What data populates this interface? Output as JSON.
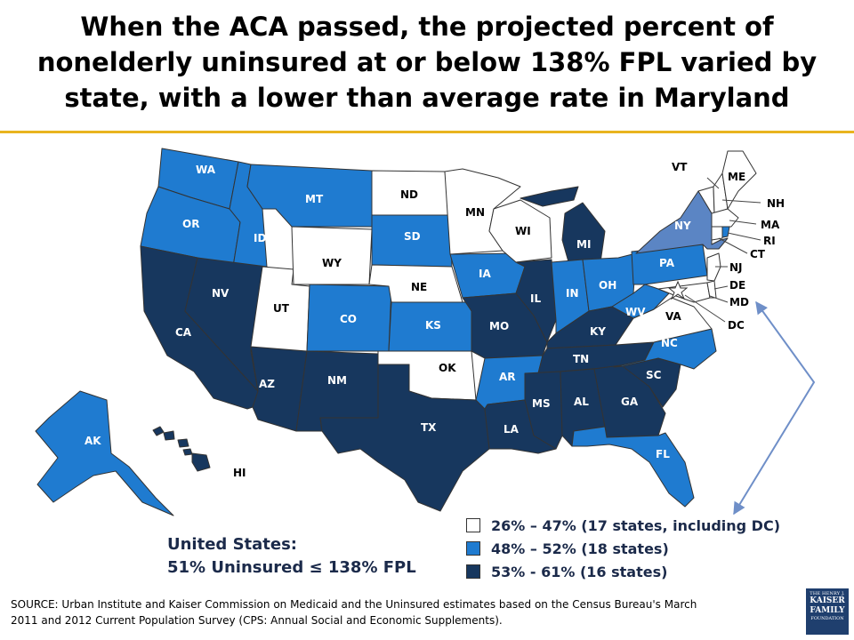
{
  "title": "When the ACA passed, the projected percent of nonelderly uninsured at or below 138% FPL varied by state, with a lower than average rate in Maryland",
  "us_summary": {
    "line1": "United States:",
    "line2": "51% Uninsured ≤ 138% FPL"
  },
  "legend": [
    {
      "label": "26% – 47% (17 states, including DC)",
      "color": "#ffffff"
    },
    {
      "label": "48% – 52% (18 states)",
      "color": "#1f7bd0"
    },
    {
      "label": "53% - 61% (16 states)",
      "color": "#17375e"
    }
  ],
  "colors": {
    "low": "#ffffff",
    "mid": "#1f7bd0",
    "high": "#17375e",
    "ny": "#5b85c4",
    "stroke": "#333333",
    "arrow": "#6f8fc8",
    "rule": "#e8b41e"
  },
  "states": {
    "WA": "WA",
    "OR": "OR",
    "CA": "CA",
    "ID": "ID",
    "NV": "NV",
    "AZ": "AZ",
    "UT": "UT",
    "MT": "MT",
    "WY": "WY",
    "CO": "CO",
    "NM": "NM",
    "ND": "ND",
    "SD": "SD",
    "NE": "NE",
    "KS": "KS",
    "OK": "OK",
    "TX": "TX",
    "MN": "MN",
    "IA": "IA",
    "MO": "MO",
    "AR": "AR",
    "LA": "LA",
    "WI": "WI",
    "IL": "IL",
    "MI": "MI",
    "IN": "IN",
    "OH": "OH",
    "KY": "KY",
    "TN": "TN",
    "MS": "MS",
    "AL": "AL",
    "GA": "GA",
    "FL": "FL",
    "SC": "SC",
    "NC": "NC",
    "VA": "VA",
    "WV": "WV",
    "PA": "PA",
    "NY": "NY",
    "VT": "VT",
    "ME": "ME",
    "NH": "NH",
    "MA": "MA",
    "RI": "RI",
    "CT": "CT",
    "NJ": "NJ",
    "DE": "DE",
    "MD": "MD",
    "DC": "DC",
    "AK": "AK",
    "HI": "HI"
  },
  "source": "SOURCE: Urban Institute and Kaiser Commission on Medicaid and the Uninsured estimates based on the Census Bureau's March 2011 and 2012 Current Population Survey (CPS: Annual Social and Economic Supplements).",
  "logo": {
    "line1": "THE HENRY J.",
    "line2": "KAISER",
    "line3": "FAMILY",
    "line4": "FOUNDATION"
  }
}
